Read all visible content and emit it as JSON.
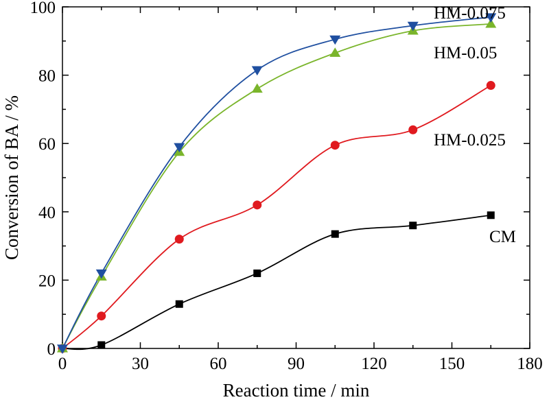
{
  "chart_data": {
    "type": "scatter",
    "title": "",
    "xlabel": "Reaction time / min",
    "ylabel": "Conversion of BA / %",
    "xlim": [
      0,
      180
    ],
    "ylim": [
      0,
      100
    ],
    "xticks": [
      0,
      30,
      60,
      90,
      120,
      150,
      180
    ],
    "yticks": [
      0,
      20,
      40,
      60,
      80,
      100
    ],
    "grid": false,
    "legend": "inline labels",
    "x": [
      0,
      15,
      45,
      75,
      105,
      135,
      165
    ],
    "series": [
      {
        "name": "CM",
        "marker": "square",
        "color": "#000000",
        "values": [
          0,
          1,
          13,
          22,
          33.5,
          36,
          39
        ]
      },
      {
        "name": "HM-0.025",
        "marker": "circle",
        "color": "#e01a1f",
        "values": [
          0,
          9.5,
          32,
          42,
          59.5,
          64,
          77
        ]
      },
      {
        "name": "HM-0.05",
        "marker": "triangle-up",
        "color": "#7ab52b",
        "values": [
          0,
          21,
          57.5,
          76,
          86.5,
          93,
          95
        ]
      },
      {
        "name": "HM-0.075",
        "marker": "triangle-down",
        "color": "#1f4fa0",
        "values": [
          0,
          22,
          59,
          81.5,
          90.5,
          94.5,
          97
        ]
      }
    ]
  }
}
